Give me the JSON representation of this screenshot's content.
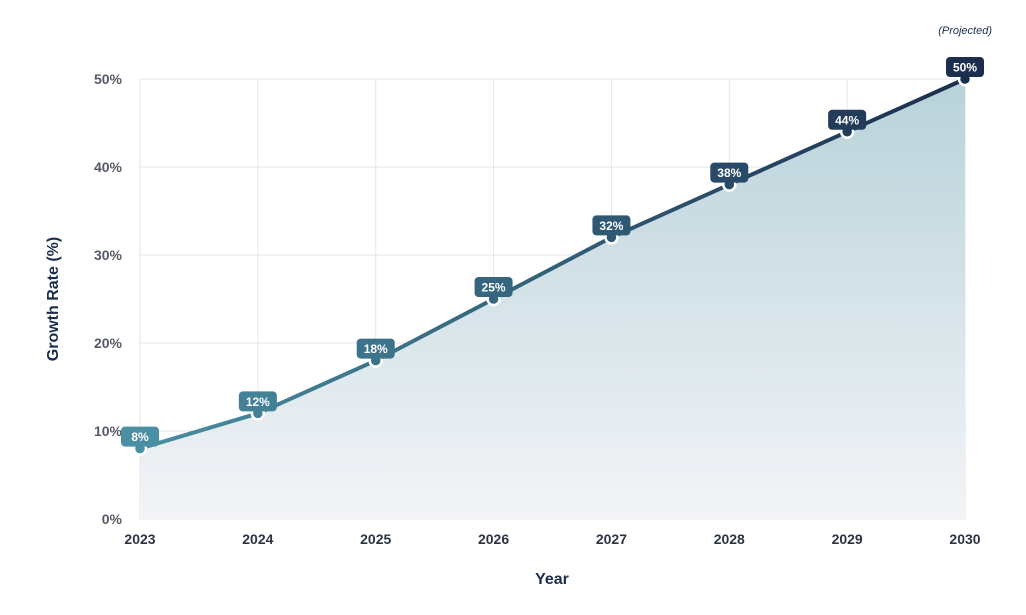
{
  "chart_data": {
    "type": "area",
    "x": [
      "2023",
      "2024",
      "2025",
      "2026",
      "2027",
      "2028",
      "2029",
      "2030"
    ],
    "values": [
      8,
      12,
      18,
      25,
      32,
      38,
      44,
      50
    ],
    "data_labels": [
      "8%",
      "12%",
      "18%",
      "25%",
      "32%",
      "38%",
      "44%",
      "50%"
    ],
    "xlabel": "Year",
    "ylabel": "Growth Rate (%)",
    "ylim": [
      0,
      50
    ],
    "yticks": [
      0,
      10,
      20,
      30,
      40,
      50
    ],
    "ytick_labels": [
      "0%",
      "10%",
      "20%",
      "30%",
      "40%",
      "50%"
    ],
    "annotation": "(Projected)",
    "grid": true,
    "colors": {
      "line_start": "#4a8fa3",
      "line_end": "#1b2e4e",
      "fill_top": "#b8d2da",
      "fill_bottom": "#f3f4f7",
      "grid": "#e4e6ea"
    }
  }
}
